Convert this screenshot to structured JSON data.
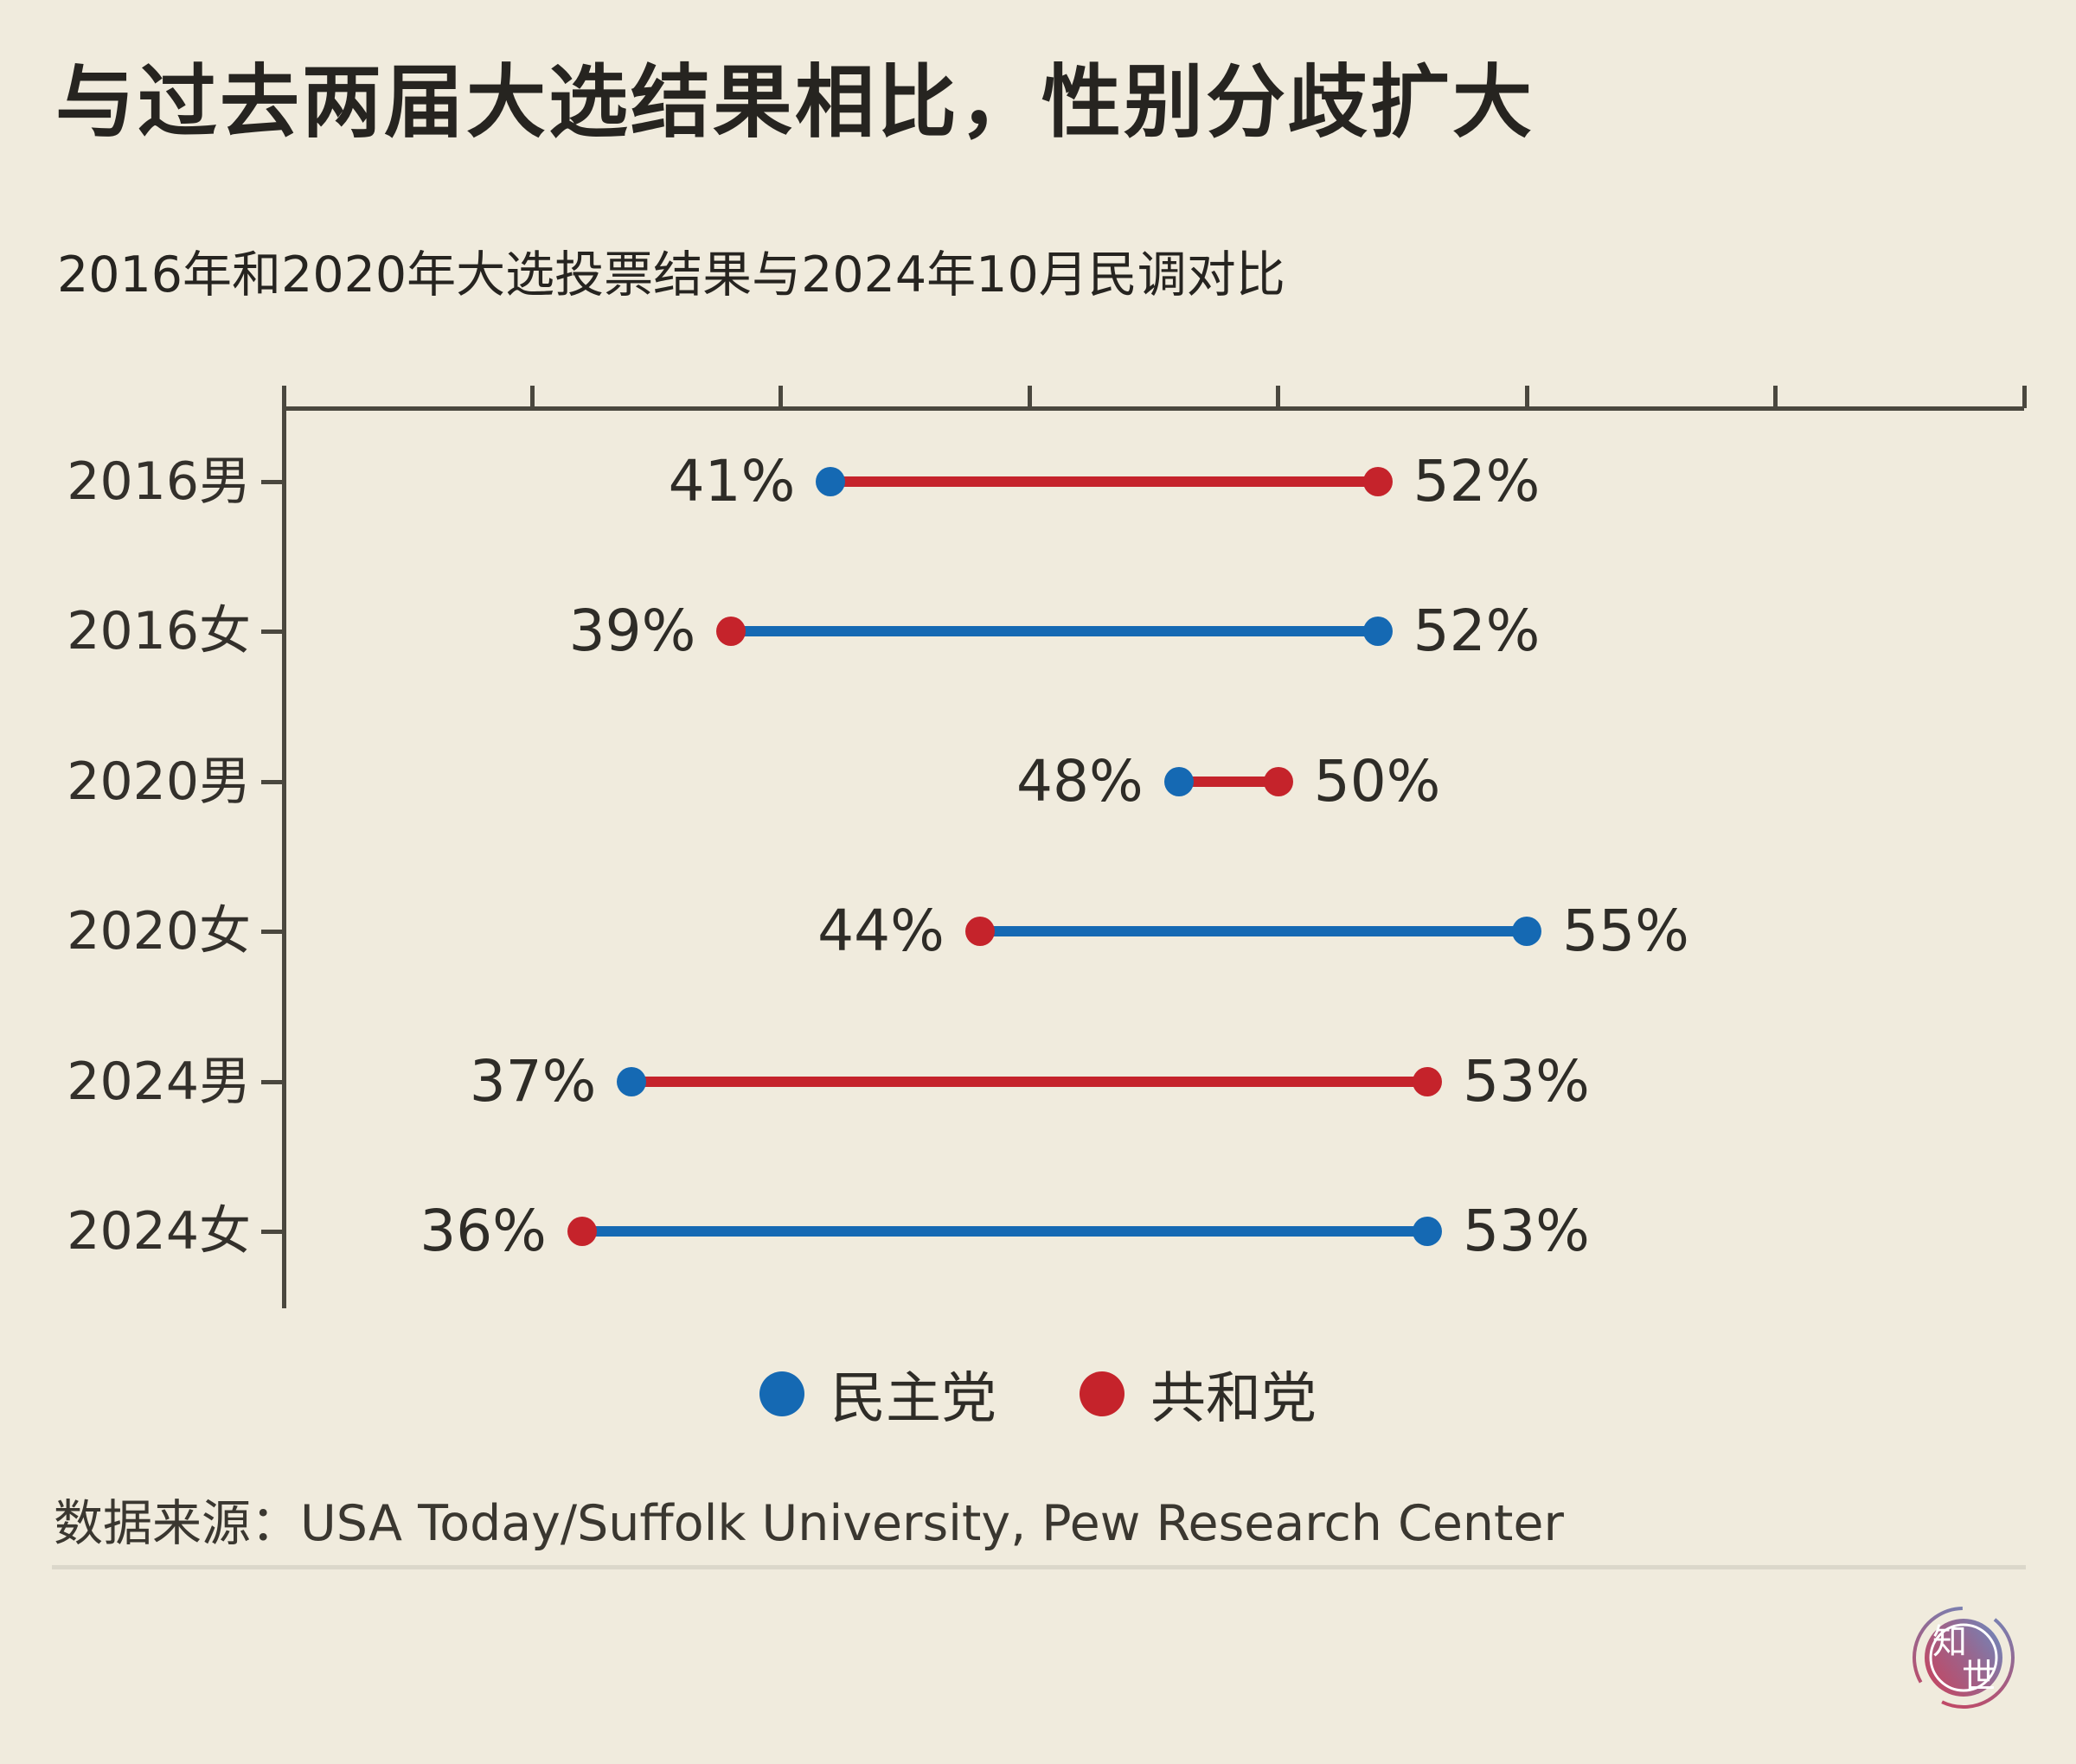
{
  "page": {
    "background": "#f0ebdd"
  },
  "header": {
    "title": "与过去两届大选结果相比，性别分歧扩大",
    "subtitle": "2016年和2020年大选投票结果与2024年10月民调对比"
  },
  "colors": {
    "democrat": "#1569b3",
    "republican": "#c5232b",
    "axis": "#4a473e",
    "background": "#f0ebdd"
  },
  "chart_data": {
    "type": "dumbbell",
    "orientation": "horizontal",
    "title": "与过去两届大选结果相比，性别分歧扩大",
    "subtitle": "2016年和2020年大选投票结果与2024年10月民调对比",
    "axis": {
      "min": 30,
      "max": 65,
      "tick_step": 5,
      "ticks": [
        30,
        35,
        40,
        45,
        50,
        55,
        60,
        65
      ],
      "tick_labels_visible": false,
      "position": "top"
    },
    "categories": [
      "2016男",
      "2016女",
      "2020男",
      "2020女",
      "2024男",
      "2024女"
    ],
    "series": [
      {
        "name": "民主党",
        "key": "democrat",
        "color": "#1569b3",
        "values": [
          41,
          52,
          48,
          55,
          37,
          53
        ]
      },
      {
        "name": "共和党",
        "key": "republican",
        "color": "#c5232b",
        "values": [
          52,
          39,
          50,
          44,
          53,
          36
        ]
      }
    ],
    "rows": [
      {
        "label": "2016男",
        "democrat": 41,
        "republican": 52,
        "line": "republican"
      },
      {
        "label": "2016女",
        "democrat": 52,
        "republican": 39,
        "line": "democrat"
      },
      {
        "label": "2020男",
        "democrat": 48,
        "republican": 50,
        "line": "republican"
      },
      {
        "label": "2020女",
        "democrat": 55,
        "republican": 44,
        "line": "democrat"
      },
      {
        "label": "2024男",
        "democrat": 37,
        "republican": 53,
        "line": "republican"
      },
      {
        "label": "2024女",
        "democrat": 53,
        "republican": 36,
        "line": "democrat"
      }
    ],
    "value_suffix": "%",
    "legend_position": "bottom-center"
  },
  "legend": {
    "items": [
      {
        "label": "民主党",
        "series": "democrat"
      },
      {
        "label": "共和党",
        "series": "republican"
      }
    ]
  },
  "footer": {
    "source": "数据来源：USA Today/Suffolk University, Pew Research Center"
  },
  "logo": {
    "char_top": "知",
    "char_bottom": "世",
    "gradient": [
      "#c64560",
      "#6f87bb"
    ]
  }
}
